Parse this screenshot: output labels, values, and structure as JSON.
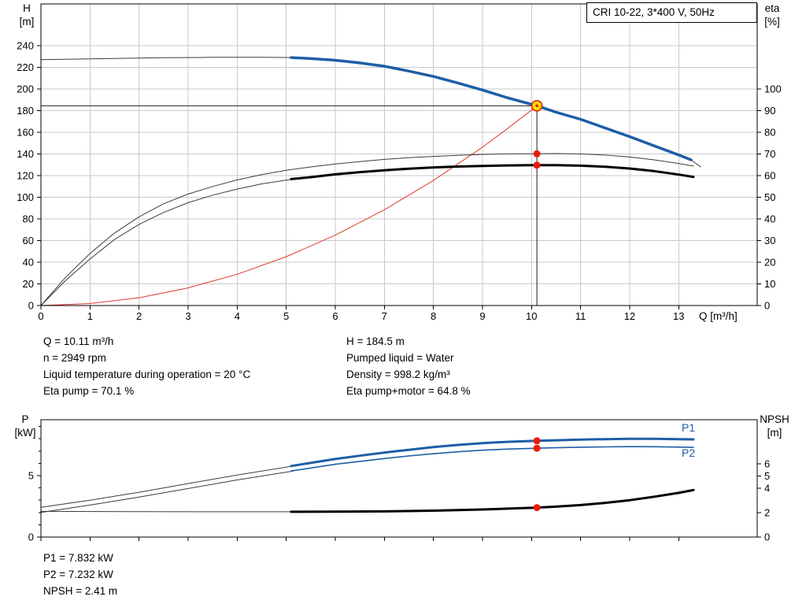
{
  "page": {
    "background": "#ffffff"
  },
  "axis_labels": {
    "h": "H",
    "h_unit": "[m]",
    "eta": "eta",
    "eta_unit": "[%]",
    "q": "Q [m³/h]",
    "p": "P",
    "p_unit": "[kW]",
    "npsh": "NPSH",
    "npsh_unit": "[m]",
    "p1": "P1",
    "p2": "P2"
  },
  "info_block": {
    "left": [
      "Q = 10.11 m³/h",
      "n = 2949 rpm",
      "Liquid temperature during operation = 20 °C",
      "Eta pump = 70.1 %"
    ],
    "right": [
      "H = 184.5 m",
      "Pumped liquid = Water",
      "Density = 998.2 kg/m³",
      "Eta pump+motor = 64.8 %"
    ]
  },
  "result_block": {
    "lines": [
      "P1 = 7.832 kW",
      "P2 = 7.232 kW",
      "NPSH = 2.41 m"
    ]
  },
  "colors": {
    "curve_blue": "#1e5ea6",
    "curve_black": "#000000",
    "curve_thin": "#3c3c3c",
    "system_red": "#e0392e",
    "grid": "#c9c9c9",
    "marker_red": "#ea1c0d",
    "duty_fill": "#ffe000",
    "axis": "#000000"
  },
  "chart_data": [
    {
      "type": "line",
      "id": "qh-eta-chart",
      "title": "CRI 10-22, 3*400 V, 50Hz",
      "x_axis": {
        "label": "Q [m³/h]",
        "min": 0,
        "max": 14.6,
        "ticks": [
          0,
          1,
          2,
          3,
          4,
          5,
          6,
          7,
          8,
          9,
          10,
          11,
          12,
          13
        ]
      },
      "y_left": {
        "label": "H [m]",
        "min": 0,
        "max": 278.5,
        "ticks": [
          0,
          20,
          40,
          60,
          80,
          100,
          120,
          140,
          160,
          180,
          200,
          220,
          240
        ]
      },
      "y_right": {
        "label": "eta [%]",
        "min": 0,
        "max": 139.3,
        "ticks": [
          0,
          10,
          20,
          30,
          40,
          50,
          60,
          70,
          80,
          90,
          100
        ]
      },
      "grid": true,
      "duty_point": {
        "Q": 10.11,
        "H": 184.5,
        "eta_pump": 70.1,
        "eta_pump_motor": 64.8
      },
      "series": [
        {
          "name": "duty-h-line",
          "axis": "left",
          "color": "#000000",
          "width": 0.9,
          "points": [
            [
              0,
              184.5
            ],
            [
              10.11,
              184.5
            ]
          ]
        },
        {
          "name": "duty-q-line",
          "axis": "left",
          "color": "#000000",
          "width": 0.9,
          "points": [
            [
              10.11,
              184.5
            ],
            [
              10.11,
              0
            ]
          ]
        },
        {
          "name": "system-curve",
          "axis": "left",
          "color": "#e0392e",
          "width": 1,
          "points": [
            [
              0,
              0
            ],
            [
              1,
              1.8
            ],
            [
              2,
              7.2
            ],
            [
              3,
              16.3
            ],
            [
              4,
              28.9
            ],
            [
              5,
              45.1
            ],
            [
              6,
              65
            ],
            [
              7,
              88.4
            ],
            [
              8,
              115.5
            ],
            [
              9,
              146.2
            ],
            [
              9.5,
              163
            ],
            [
              10,
              180.5
            ],
            [
              10.11,
              184.5
            ]
          ]
        },
        {
          "name": "eta-pump-curve",
          "axis": "right",
          "color": "#3c3c3c",
          "width": 1,
          "points": [
            [
              0,
              0
            ],
            [
              0.5,
              13
            ],
            [
              1,
              24
            ],
            [
              1.5,
              33.5
            ],
            [
              2,
              41
            ],
            [
              2.5,
              47
            ],
            [
              3,
              51.5
            ],
            [
              3.5,
              55
            ],
            [
              4,
              58
            ],
            [
              4.5,
              60.5
            ],
            [
              5,
              62.5
            ],
            [
              5.5,
              64
            ],
            [
              6,
              65.4
            ],
            [
              6.5,
              66.5
            ],
            [
              7,
              67.5
            ],
            [
              7.5,
              68.3
            ],
            [
              8,
              68.9
            ],
            [
              8.5,
              69.4
            ],
            [
              9,
              69.8
            ],
            [
              9.5,
              70
            ],
            [
              10,
              70.1
            ],
            [
              10.5,
              70.2
            ],
            [
              11,
              70
            ],
            [
              11.5,
              69.5
            ],
            [
              12,
              68.6
            ],
            [
              12.5,
              67.3
            ],
            [
              13,
              65.6
            ],
            [
              13.3,
              64.4
            ]
          ]
        },
        {
          "name": "eta-pump-motor-curve-thin",
          "axis": "right",
          "color": "#3c3c3c",
          "width": 1,
          "points": [
            [
              0,
              0
            ],
            [
              0.5,
              11.5
            ],
            [
              1,
              21.5
            ],
            [
              1.5,
              30.5
            ],
            [
              2,
              37.5
            ],
            [
              2.5,
              43
            ],
            [
              3,
              47.5
            ],
            [
              3.5,
              51
            ],
            [
              4,
              53.8
            ],
            [
              4.5,
              56.2
            ],
            [
              5.15,
              58.4
            ]
          ]
        },
        {
          "name": "eta-pump-motor-curve",
          "axis": "right",
          "color": "#000000",
          "width": 3,
          "points": [
            [
              5.1,
              58.4
            ],
            [
              5.5,
              59.3
            ],
            [
              6,
              60.6
            ],
            [
              6.5,
              61.6
            ],
            [
              7,
              62.5
            ],
            [
              7.5,
              63.2
            ],
            [
              8,
              63.8
            ],
            [
              8.5,
              64.2
            ],
            [
              9,
              64.5
            ],
            [
              9.5,
              64.7
            ],
            [
              10,
              64.8
            ],
            [
              10.5,
              64.8
            ],
            [
              11,
              64.6
            ],
            [
              11.5,
              64.1
            ],
            [
              12,
              63.3
            ],
            [
              12.5,
              62.1
            ],
            [
              13,
              60.5
            ],
            [
              13.3,
              59.4
            ]
          ]
        },
        {
          "name": "qh-curve-thin",
          "axis": "left",
          "color": "#3c3c3c",
          "width": 1,
          "points": [
            [
              0,
              227
            ],
            [
              0.5,
              227.4
            ],
            [
              1,
              227.8
            ],
            [
              1.5,
              228.1
            ],
            [
              2,
              228.5
            ],
            [
              2.5,
              228.8
            ],
            [
              3,
              229
            ],
            [
              3.5,
              229.2
            ],
            [
              4,
              229.3
            ],
            [
              4.5,
              229.3
            ],
            [
              5.2,
              229
            ]
          ]
        },
        {
          "name": "qh-curve",
          "axis": "left",
          "color": "#1e5ea6",
          "width": 3.5,
          "points": [
            [
              5.1,
              229
            ],
            [
              5.5,
              228
            ],
            [
              6,
              226.5
            ],
            [
              6.5,
              224
            ],
            [
              7,
              221
            ],
            [
              7.5,
              216.5
            ],
            [
              8,
              211.5
            ],
            [
              8.5,
              205.5
            ],
            [
              9,
              199
            ],
            [
              9.5,
              192
            ],
            [
              10,
              185.8
            ],
            [
              10.11,
              184.5
            ],
            [
              10.5,
              178.5
            ],
            [
              11,
              172
            ],
            [
              11.5,
              164
            ],
            [
              12,
              156
            ],
            [
              12.5,
              147.5
            ],
            [
              13,
              139
            ],
            [
              13.25,
              134.5
            ]
          ]
        },
        {
          "name": "qh-curve-end-thin",
          "axis": "left",
          "color": "#3c3c3c",
          "width": 1,
          "points": [
            [
              13.25,
              134.5
            ],
            [
              13.45,
              128
            ]
          ]
        }
      ],
      "markers": [
        {
          "name": "duty-point-marker",
          "style": "duty",
          "axis": "left",
          "x": 10.11,
          "y": 184.5
        },
        {
          "name": "eta-pump-marker",
          "style": "dot",
          "axis": "right",
          "x": 10.11,
          "y": 70.1
        },
        {
          "name": "eta-pump-motor-marker",
          "style": "dot",
          "axis": "right",
          "x": 10.11,
          "y": 64.8
        }
      ]
    },
    {
      "type": "line",
      "id": "power-npsh-chart",
      "title": "",
      "x_axis": {
        "label": "Q [m³/h]",
        "min": 0,
        "max": 14.6,
        "ticks": [
          0,
          1,
          2,
          3,
          4,
          5,
          6,
          7,
          8,
          9,
          10,
          11,
          12,
          13
        ]
      },
      "y_left": {
        "label": "P [kW]",
        "min": 0,
        "max": 9.55,
        "ticks": [
          0,
          5
        ],
        "minor_ticks": [
          1,
          2,
          3,
          4,
          6,
          7,
          8,
          9
        ]
      },
      "y_right": {
        "label": "NPSH [m]",
        "min": 0,
        "max": 9.61,
        "ticks": [
          0,
          2,
          4,
          5,
          6
        ]
      },
      "grid": false,
      "duty_point": {
        "Q": 10.11,
        "P1": 7.832,
        "P2": 7.232,
        "NPSH": 2.41
      },
      "series": [
        {
          "name": "p1-curve-thin",
          "axis": "left",
          "color": "#3c3c3c",
          "width": 1,
          "points": [
            [
              0,
              2.42
            ],
            [
              1,
              3.0
            ],
            [
              2,
              3.65
            ],
            [
              3,
              4.35
            ],
            [
              4,
              5.05
            ],
            [
              5.15,
              5.78
            ]
          ]
        },
        {
          "name": "p2-curve-thin",
          "axis": "left",
          "color": "#3c3c3c",
          "width": 1,
          "points": [
            [
              0,
              2.0
            ],
            [
              1,
              2.6
            ],
            [
              2,
              3.25
            ],
            [
              3,
              3.95
            ],
            [
              4,
              4.65
            ],
            [
              5.15,
              5.38
            ]
          ]
        },
        {
          "name": "npsh-curve-thin",
          "axis": "right",
          "color": "#3c3c3c",
          "width": 1,
          "points": [
            [
              0,
              2.1
            ],
            [
              2,
              2.08
            ],
            [
              4,
              2.07
            ],
            [
              5.15,
              2.07
            ]
          ]
        },
        {
          "name": "p1-curve",
          "axis": "left",
          "color": "#1e5ea6",
          "width": 3,
          "points": [
            [
              5.1,
              5.78
            ],
            [
              6,
              6.35
            ],
            [
              6.5,
              6.62
            ],
            [
              7,
              6.87
            ],
            [
              7.5,
              7.1
            ],
            [
              8,
              7.32
            ],
            [
              8.5,
              7.5
            ],
            [
              9,
              7.64
            ],
            [
              9.5,
              7.75
            ],
            [
              10,
              7.82
            ],
            [
              10.11,
              7.832
            ],
            [
              10.5,
              7.88
            ],
            [
              11,
              7.93
            ],
            [
              11.5,
              7.97
            ],
            [
              12,
              7.99
            ],
            [
              12.5,
              7.99
            ],
            [
              13,
              7.97
            ],
            [
              13.3,
              7.95
            ]
          ]
        },
        {
          "name": "p2-curve",
          "axis": "left",
          "color": "#1e5ea6",
          "width": 1.6,
          "points": [
            [
              5.1,
              5.38
            ],
            [
              6,
              5.92
            ],
            [
              6.5,
              6.16
            ],
            [
              7,
              6.39
            ],
            [
              7.5,
              6.6
            ],
            [
              8,
              6.78
            ],
            [
              8.5,
              6.94
            ],
            [
              9,
              7.07
            ],
            [
              9.5,
              7.16
            ],
            [
              10,
              7.22
            ],
            [
              10.11,
              7.232
            ],
            [
              10.5,
              7.27
            ],
            [
              11,
              7.31
            ],
            [
              11.5,
              7.34
            ],
            [
              12,
              7.36
            ],
            [
              12.5,
              7.35
            ],
            [
              13,
              7.32
            ],
            [
              13.3,
              7.3
            ]
          ]
        },
        {
          "name": "npsh-curve",
          "axis": "right",
          "color": "#000000",
          "width": 3,
          "points": [
            [
              5.1,
              2.07
            ],
            [
              6,
              2.08
            ],
            [
              7,
              2.1
            ],
            [
              8,
              2.16
            ],
            [
              9,
              2.26
            ],
            [
              10,
              2.39
            ],
            [
              10.11,
              2.41
            ],
            [
              10.5,
              2.49
            ],
            [
              11,
              2.62
            ],
            [
              11.5,
              2.8
            ],
            [
              12,
              3.02
            ],
            [
              12.5,
              3.3
            ],
            [
              13,
              3.62
            ],
            [
              13.3,
              3.85
            ]
          ]
        }
      ],
      "markers": [
        {
          "name": "p1-marker",
          "style": "dot",
          "axis": "left",
          "x": 10.11,
          "y": 7.832
        },
        {
          "name": "p2-marker",
          "style": "dot",
          "axis": "left",
          "x": 10.11,
          "y": 7.232
        },
        {
          "name": "npsh-marker",
          "style": "dot",
          "axis": "right",
          "x": 10.11,
          "y": 2.41
        }
      ]
    }
  ]
}
